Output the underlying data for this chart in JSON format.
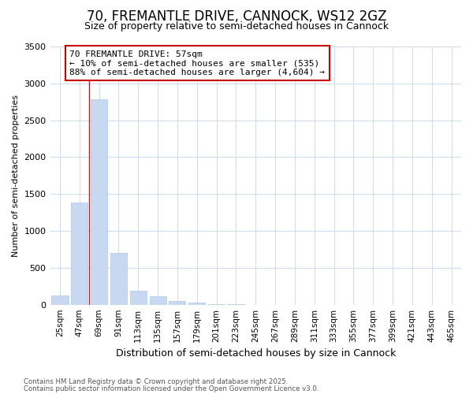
{
  "title_line1": "70, FREMANTLE DRIVE, CANNOCK, WS12 2GZ",
  "title_line2": "Size of property relative to semi-detached houses in Cannock",
  "xlabel": "Distribution of semi-detached houses by size in Cannock",
  "ylabel": "Number of semi-detached properties",
  "bins": [
    "25sqm",
    "47sqm",
    "69sqm",
    "91sqm",
    "113sqm",
    "135sqm",
    "157sqm",
    "179sqm",
    "201sqm",
    "223sqm",
    "245sqm",
    "267sqm",
    "289sqm",
    "311sqm",
    "333sqm",
    "355sqm",
    "377sqm",
    "399sqm",
    "421sqm",
    "443sqm",
    "465sqm"
  ],
  "values": [
    130,
    1380,
    2780,
    700,
    185,
    110,
    50,
    25,
    5,
    2,
    1,
    0,
    0,
    0,
    0,
    0,
    0,
    0,
    0,
    0,
    0
  ],
  "bar_color": "#c8d8f0",
  "bar_edge_color": "#b0c8e8",
  "red_line_x": 1.5,
  "annotation_title": "70 FREMANTLE DRIVE: 57sqm",
  "annotation_line2": "← 10% of semi-detached houses are smaller (535)",
  "annotation_line3": "88% of semi-detached houses are larger (4,604) →",
  "annotation_box_facecolor": "#ffffff",
  "annotation_box_edgecolor": "#cc0000",
  "ylim": [
    0,
    3500
  ],
  "yticks": [
    0,
    500,
    1000,
    1500,
    2000,
    2500,
    3000,
    3500
  ],
  "footnote_line1": "Contains HM Land Registry data © Crown copyright and database right 2025.",
  "footnote_line2": "Contains public sector information licensed under the Open Government Licence v3.0.",
  "background_color": "#ffffff",
  "grid_color": "#d0ddf0",
  "title_fontsize": 12,
  "subtitle_fontsize": 9,
  "xlabel_fontsize": 9,
  "ylabel_fontsize": 8,
  "annotation_fontsize": 8
}
